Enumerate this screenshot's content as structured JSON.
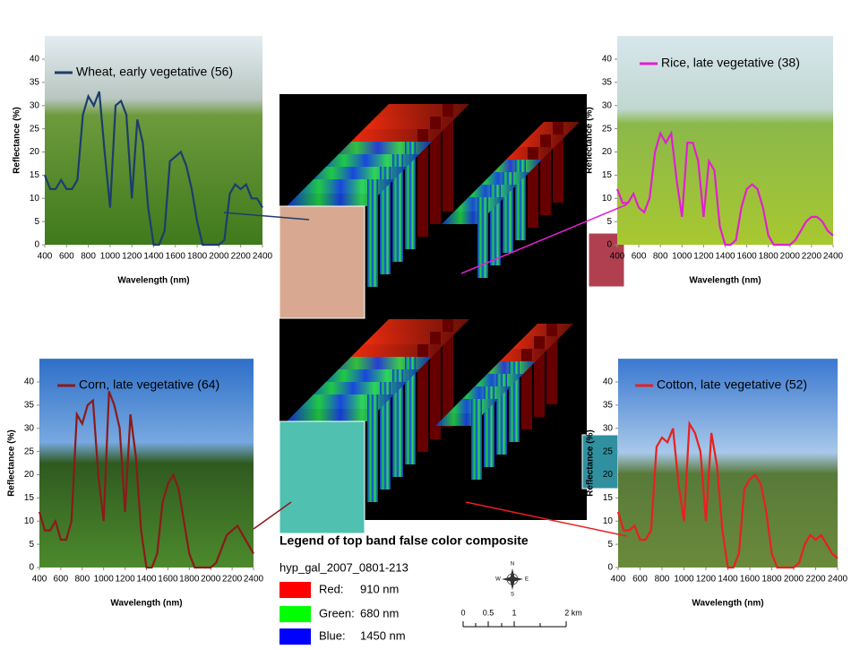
{
  "chart_data": [
    {
      "type": "line",
      "xlabel": "Wavelength (nm)",
      "ylabel": "Reflectance (%)",
      "x": [
        400,
        450,
        500,
        550,
        600,
        650,
        700,
        750,
        800,
        850,
        900,
        950,
        1000,
        1050,
        1100,
        1150,
        1200,
        1250,
        1300,
        1350,
        1400,
        1450,
        1500,
        1550,
        1600,
        1650,
        1700,
        1750,
        1800,
        1850,
        1900,
        1950,
        2000,
        2050,
        2100,
        2150,
        2200,
        2250,
        2300,
        2350,
        2400
      ],
      "series": [
        {
          "name": "Wheat, early vegetative (56)",
          "color": "#1c3d6e",
          "values": [
            15,
            12,
            12,
            14,
            12,
            12,
            14,
            28,
            32,
            30,
            33,
            20,
            8,
            30,
            31,
            28,
            10,
            27,
            22,
            8,
            0,
            0,
            3,
            18,
            19,
            20,
            17,
            12,
            5,
            0,
            0,
            0,
            0,
            1,
            11,
            13,
            12,
            13,
            10,
            10,
            8
          ]
        }
      ],
      "xlim": [
        400,
        2400
      ],
      "ylim": [
        0,
        45
      ],
      "xticks": [
        400,
        600,
        800,
        1000,
        1200,
        1400,
        1600,
        1800,
        2000,
        2200,
        2400
      ],
      "yticks": [
        0,
        5,
        10,
        15,
        20,
        25,
        30,
        35,
        40
      ]
    },
    {
      "type": "line",
      "xlabel": "Wavelength (nm)",
      "ylabel": "Reflectance (%)",
      "x": [
        400,
        450,
        500,
        550,
        600,
        650,
        700,
        750,
        800,
        850,
        900,
        950,
        1000,
        1050,
        1100,
        1150,
        1200,
        1250,
        1300,
        1350,
        1400,
        1450,
        1500,
        1550,
        1600,
        1650,
        1700,
        1750,
        1800,
        1850,
        1900,
        1950,
        2000,
        2050,
        2100,
        2150,
        2200,
        2250,
        2300,
        2350,
        2400
      ],
      "series": [
        {
          "name": "Rice, late vegetative (38)",
          "color": "#e020d0",
          "values": [
            12,
            9,
            9,
            11,
            8,
            7,
            10,
            20,
            24,
            22,
            24,
            14,
            6,
            22,
            22,
            18,
            6,
            18,
            16,
            4,
            0,
            0,
            1,
            8,
            12,
            13,
            12,
            8,
            2,
            0,
            0,
            0,
            0,
            1,
            3,
            5,
            6,
            6,
            5,
            3,
            2
          ]
        }
      ],
      "xlim": [
        400,
        2400
      ],
      "ylim": [
        0,
        45
      ],
      "xticks": [
        400,
        600,
        800,
        1000,
        1200,
        1400,
        1600,
        1800,
        2000,
        2200,
        2400
      ],
      "yticks": [
        0,
        5,
        10,
        15,
        20,
        25,
        30,
        35,
        40
      ]
    },
    {
      "type": "line",
      "xlabel": "Wavelength (nm)",
      "ylabel": "Reflectance (%)",
      "x": [
        400,
        450,
        500,
        550,
        600,
        650,
        700,
        750,
        800,
        850,
        900,
        950,
        1000,
        1050,
        1100,
        1150,
        1200,
        1250,
        1300,
        1350,
        1400,
        1450,
        1500,
        1550,
        1600,
        1650,
        1700,
        1750,
        1800,
        1850,
        1900,
        1950,
        2000,
        2050,
        2100,
        2150,
        2200,
        2250,
        2300,
        2350,
        2400
      ],
      "series": [
        {
          "name": "Corn, late vegetative (64)",
          "color": "#8b1a1a",
          "values": [
            12,
            8,
            8,
            10,
            6,
            6,
            10,
            33,
            31,
            35,
            36,
            20,
            10,
            38,
            35,
            30,
            12,
            33,
            24,
            8,
            0,
            0,
            3,
            14,
            18,
            20,
            17,
            10,
            3,
            0,
            0,
            0,
            0,
            1,
            4,
            7,
            8,
            9,
            7,
            5,
            3
          ]
        }
      ],
      "xlim": [
        400,
        2400
      ],
      "ylim": [
        0,
        45
      ],
      "xticks": [
        400,
        600,
        800,
        1000,
        1200,
        1400,
        1600,
        1800,
        2000,
        2200,
        2400
      ],
      "yticks": [
        0,
        5,
        10,
        15,
        20,
        25,
        30,
        35,
        40
      ]
    },
    {
      "type": "line",
      "xlabel": "Wavelength (nm)",
      "ylabel": "Reflectance (%)",
      "x": [
        400,
        450,
        500,
        550,
        600,
        650,
        700,
        750,
        800,
        850,
        900,
        950,
        1000,
        1050,
        1100,
        1150,
        1200,
        1250,
        1300,
        1350,
        1400,
        1450,
        1500,
        1550,
        1600,
        1650,
        1700,
        1750,
        1800,
        1850,
        1900,
        1950,
        2000,
        2050,
        2100,
        2150,
        2200,
        2250,
        2300,
        2350,
        2400
      ],
      "series": [
        {
          "name": "Cotton, late vegetative (52)",
          "color": "#e82020",
          "values": [
            12,
            8,
            8,
            9,
            6,
            6,
            8,
            26,
            28,
            27,
            30,
            18,
            10,
            31,
            29,
            25,
            10,
            29,
            22,
            8,
            0,
            0,
            3,
            17,
            19,
            20,
            18,
            12,
            3,
            0,
            0,
            0,
            0,
            1,
            5,
            7,
            6,
            7,
            5,
            3,
            2
          ]
        }
      ],
      "xlim": [
        400,
        2400
      ],
      "ylim": [
        0,
        45
      ],
      "xticks": [
        400,
        600,
        800,
        1000,
        1200,
        1400,
        1600,
        1800,
        2000,
        2200,
        2400
      ],
      "yticks": [
        0,
        5,
        10,
        15,
        20,
        25,
        30,
        35,
        40
      ]
    }
  ],
  "composite_legend": {
    "title": "Legend of top band false color composite",
    "source": "hyp_gal_2007_0801-213",
    "bands": [
      {
        "label": "Red:",
        "value": "910 nm"
      },
      {
        "label": "Green:",
        "value": "680 nm"
      },
      {
        "label": "Blue:",
        "value": "1450 nm"
      }
    ]
  },
  "scale_bar": {
    "labels": [
      "0",
      "0.5",
      "1",
      "2 km"
    ]
  },
  "compass": [
    "N",
    "E",
    "S",
    "W"
  ]
}
